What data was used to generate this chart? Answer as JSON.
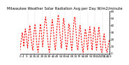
{
  "title": "Milwaukee Weather Solar Radiation Avg per Day W/m2/minute",
  "y_values": [
    5,
    15,
    22,
    30,
    20,
    10,
    25,
    35,
    28,
    18,
    8,
    20,
    32,
    40,
    30,
    18,
    10,
    5,
    22,
    35,
    42,
    30,
    18,
    8,
    2,
    15,
    30,
    42,
    35,
    22,
    10,
    20,
    35,
    45,
    52,
    42,
    30,
    18,
    8,
    2,
    12,
    28,
    40,
    48,
    38,
    25,
    12,
    5,
    18,
    35,
    48,
    55,
    45,
    30,
    18,
    8,
    20,
    38,
    50,
    42,
    28,
    15,
    5,
    15,
    30,
    42,
    38,
    25,
    12,
    5,
    18,
    35,
    48,
    52,
    40,
    25,
    10,
    5,
    18,
    32,
    40,
    30,
    18,
    8,
    2,
    12,
    25,
    35,
    28,
    15,
    5,
    18,
    30,
    38,
    28,
    15,
    5,
    18,
    30,
    38,
    28,
    15,
    5,
    18,
    28,
    38,
    28,
    15,
    5,
    2,
    10,
    20,
    28,
    20,
    10,
    5,
    2,
    8,
    15,
    20
  ],
  "line_color": "#FF0000",
  "grid_color": "#BBBBBB",
  "background_color": "#FFFFFF",
  "ylim": [
    0,
    60
  ],
  "yticks": [
    0,
    10,
    20,
    30,
    40,
    50,
    60
  ],
  "ytick_labels": [
    "0",
    "10",
    "20",
    "30",
    "40",
    "50",
    "60"
  ],
  "tick_fontsize": 3.0,
  "title_fontsize": 3.8,
  "num_vgrid": 12,
  "line_width": 0.8,
  "dash_on": 2.0,
  "dash_off": 1.5
}
